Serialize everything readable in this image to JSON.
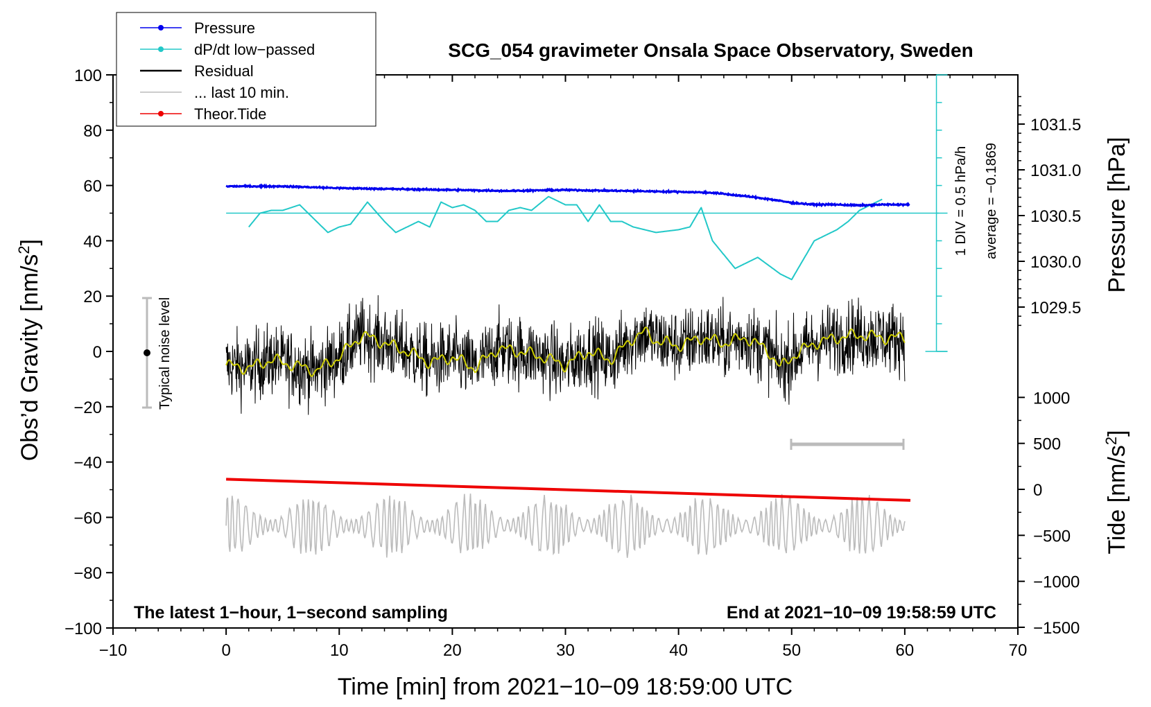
{
  "chart_data": {
    "type": "line",
    "title": "SCG_054 gravimeter Onsala Space Observatory, Sweden",
    "xlabel": "Time [min] from 2021−10−09 18:59:00 UTC",
    "ylabel": "Obs’d Gravity [nm/s²]",
    "ylabel_main": "Obs’d Gravity [nm/s",
    "ylabel_unit_sup": "2",
    "ylabel_close": "]",
    "y2label": "Pressure [hPa]",
    "y3label_main": "Tide [nm/s",
    "y3label_unit_sup": "2",
    "y3label_close": "]",
    "xlim": [
      -10,
      70
    ],
    "ylim": [
      -100,
      100
    ],
    "pressure_lim": [
      1029.0,
      1031.8
    ],
    "tide_lim": [
      -1500,
      1500
    ],
    "xticks": [
      -10,
      0,
      10,
      20,
      30,
      40,
      50,
      60,
      70
    ],
    "xtick_labels": [
      "−10",
      "0",
      "10",
      "20",
      "30",
      "40",
      "50",
      "60",
      "70"
    ],
    "yticks": [
      100,
      80,
      60,
      40,
      20,
      0,
      -20,
      -40,
      -60,
      -80,
      -100
    ],
    "ytick_labels": [
      "100",
      "80",
      "60",
      "40",
      "20",
      "0",
      "−20",
      "−40",
      "−60",
      "−80",
      "−100"
    ],
    "pressure_ticks": [
      1031.5,
      1031.0,
      1030.5,
      1030.0,
      1029.5
    ],
    "pressure_tick_labels": [
      "1031.5",
      "1031.0",
      "1030.5",
      "1030.0",
      "1029.5"
    ],
    "tide_ticks": [
      1000,
      500,
      0,
      -500,
      -1000,
      -1500
    ],
    "tide_tick_labels": [
      "1000",
      "500",
      "0",
      "−500",
      "−1000",
      "−1500"
    ],
    "legend": [
      {
        "label": "Pressure",
        "color": "#0000ee",
        "marker": true
      },
      {
        "label": "dP/dt low−passed",
        "color": "#22c8c8",
        "marker": true
      },
      {
        "label": "Residual",
        "color": "#000000",
        "marker": false
      },
      {
        "label": "... last 10 min.",
        "color": "#bbbbbb",
        "marker": false
      },
      {
        "label": "Theor.Tide",
        "color": "#ee0000",
        "marker": true
      }
    ],
    "annotations": {
      "bottom_left": "The latest 1−hour, 1−second sampling",
      "bottom_right": "End at 2021−10−09 19:58:59 UTC",
      "noise": "Typical noise level",
      "dpdt_scale": "1 DIV = 0.5 hPa/h",
      "dpdt_average": "average = −0.1869"
    },
    "series": [
      {
        "name": "Pressure",
        "unit": "hPa",
        "color": "#0000ee",
        "x": [
          0,
          5,
          10,
          15,
          20,
          25,
          30,
          35,
          40,
          43,
          46,
          48,
          50,
          52,
          54,
          56,
          58,
          60
        ],
        "values": [
          1030.82,
          1030.82,
          1030.8,
          1030.79,
          1030.78,
          1030.77,
          1030.78,
          1030.77,
          1030.76,
          1030.75,
          1030.71,
          1030.68,
          1030.64,
          1030.62,
          1030.62,
          1030.61,
          1030.62,
          1030.62
        ]
      },
      {
        "name": "dP/dt low−passed",
        "unit": "nm/s² (plot)",
        "color": "#22c8c8",
        "x": [
          2,
          3,
          4,
          5,
          6.5,
          8,
          9,
          10,
          11,
          12.5,
          14,
          15,
          16,
          17,
          18,
          19,
          20,
          21,
          22,
          23,
          24,
          25,
          26,
          27,
          28.5,
          30,
          31,
          32,
          33,
          34,
          35,
          36,
          38,
          40,
          41,
          42,
          43,
          44,
          45,
          46,
          47,
          48,
          49,
          50,
          51,
          52,
          53,
          54,
          55,
          56,
          57,
          58
        ],
        "values": [
          45,
          50,
          51,
          51,
          53,
          47,
          43,
          45,
          46,
          54,
          47,
          43,
          45,
          47,
          45,
          54,
          52,
          53,
          51,
          47,
          47,
          51,
          52,
          51,
          56,
          53,
          53,
          47,
          53,
          47,
          47,
          45,
          43,
          44,
          45,
          52,
          40,
          35,
          30,
          32,
          34,
          31,
          28,
          26,
          33,
          40,
          42,
          44,
          47,
          51,
          53,
          55
        ]
      },
      {
        "name": "Residual",
        "unit": "nm/s²",
        "color": "#000000",
        "x": [
          0,
          2,
          4,
          6,
          8,
          10,
          12,
          14,
          16,
          18,
          20,
          22,
          24,
          26,
          28,
          30,
          32,
          34,
          36,
          37,
          38,
          40,
          42,
          44,
          46,
          48,
          49,
          50,
          52,
          54,
          56,
          58,
          60
        ],
        "values": [
          -5,
          -6,
          -3,
          -5,
          -7,
          -2,
          6,
          3,
          0,
          -4,
          -2,
          -6,
          1,
          0,
          -2,
          -5,
          0,
          -3,
          5,
          7,
          4,
          2,
          5,
          3,
          5,
          0,
          -6,
          -2,
          3,
          5,
          6,
          5,
          5
        ]
      },
      {
        "name": "Residual 10-min running mean",
        "unit": "nm/s²",
        "color": "#cccc00",
        "x": [
          0,
          2,
          4,
          6,
          8,
          10,
          12,
          14,
          16,
          18,
          20,
          22,
          24,
          26,
          28,
          30,
          32,
          34,
          36,
          37,
          38,
          40,
          42,
          44,
          46,
          48,
          49,
          50,
          52,
          54,
          56,
          58,
          60
        ],
        "values": [
          -5,
          -6,
          -3,
          -5,
          -7,
          -2,
          6,
          3,
          0,
          -4,
          -2,
          -6,
          1,
          0,
          -2,
          -5,
          0,
          -3,
          5,
          7,
          4,
          2,
          5,
          3,
          5,
          0,
          -6,
          -2,
          3,
          5,
          6,
          5,
          5
        ]
      },
      {
        "name": "... last 10 min.",
        "unit": "nm/s² (plot)",
        "color": "#bbbbbb",
        "x": [
          0,
          60
        ],
        "values": [
          -63,
          -63
        ],
        "amplitude": 12
      },
      {
        "name": "Theor.Tide",
        "unit": "nm/s²",
        "color": "#ee0000",
        "x": [
          0,
          60.5
        ],
        "values": [
          110,
          -120
        ]
      }
    ]
  }
}
